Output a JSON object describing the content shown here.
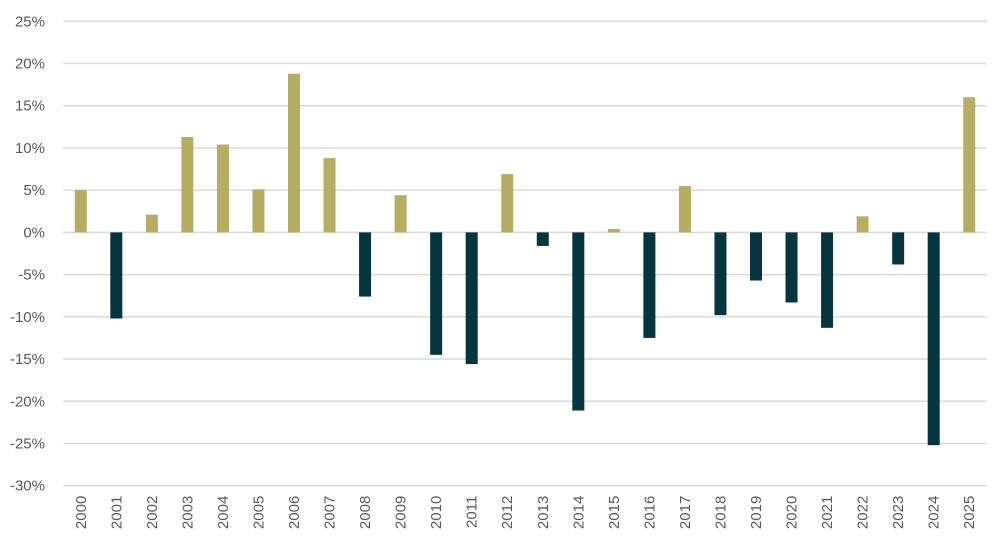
{
  "chart_data": {
    "type": "bar",
    "title": "",
    "xlabel": "",
    "ylabel": "",
    "ylim": [
      -30,
      25
    ],
    "ytick_step": 5,
    "ytick_format": "percent",
    "grid": true,
    "legend": "none",
    "colors": {
      "positive": "#b5ad62",
      "negative": "#06343f",
      "grid": "#d9d9d9",
      "text": "#595959"
    },
    "categories": [
      "2000",
      "2001",
      "2002",
      "2003",
      "2004",
      "2005",
      "2006",
      "2007",
      "2008",
      "2009",
      "2010",
      "2011",
      "2012",
      "2013",
      "2014",
      "2015",
      "2016",
      "2017",
      "2018",
      "2019",
      "2020",
      "2021",
      "2022",
      "2023",
      "2024",
      "2025"
    ],
    "values": [
      5.0,
      -10.2,
      2.1,
      11.3,
      10.4,
      5.1,
      18.8,
      8.8,
      -7.6,
      4.4,
      -14.5,
      -15.6,
      6.9,
      -1.6,
      -21.1,
      0.4,
      -12.5,
      5.5,
      -9.8,
      -5.7,
      -8.3,
      -11.3,
      1.9,
      -3.8,
      -25.2,
      16.0
    ]
  }
}
